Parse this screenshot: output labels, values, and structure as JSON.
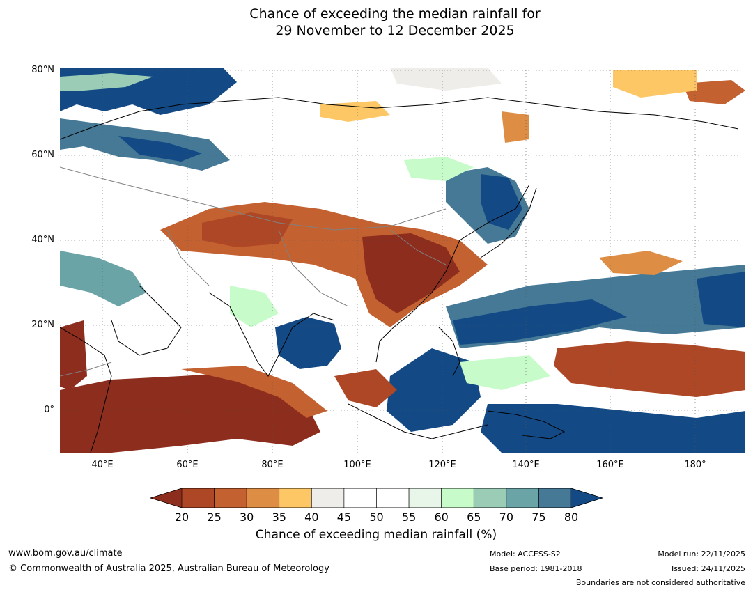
{
  "title": {
    "line1": "Chance of exceeding the median rainfall for",
    "line2": "29 November to 12 December 2025"
  },
  "map": {
    "lat_labels": [
      "80°N",
      "60°N",
      "40°N",
      "20°N",
      "0°"
    ],
    "lon_labels": [
      "40°E",
      "60°E",
      "80°E",
      "100°E",
      "120°E",
      "140°E",
      "160°E",
      "180°"
    ],
    "palette": {
      "20": "#8c2d1e",
      "25": "#ad4726",
      "30": "#c46131",
      "35": "#de8d45",
      "40": "#fdc765",
      "45": "#eeede9",
      "50": "#ffffff",
      "55": "#ffffff",
      "60": "#e8f6e9",
      "65": "#c7fcca",
      "70": "#9bcdb6",
      "75": "#6ba4a6",
      "80": "#457996",
      "over": "#134a85"
    }
  },
  "colorbar": {
    "ticks": [
      "20",
      "25",
      "30",
      "35",
      "40",
      "45",
      "50",
      "55",
      "60",
      "65",
      "70",
      "75",
      "80"
    ],
    "colors": [
      "#ad4726",
      "#c46131",
      "#de8d45",
      "#fdc765",
      "#eeede9",
      "#ffffff",
      "#ffffff",
      "#e8f6e9",
      "#c7fcca",
      "#9bcdb6",
      "#6ba4a6",
      "#457996"
    ],
    "under_color": "#8c2d1e",
    "over_color": "#134a85",
    "label": "Chance of exceeding median rainfall (%)"
  },
  "footer": {
    "website": "www.bom.gov.au/climate",
    "copyright": "© Commonwealth of Australia 2025, Australian Bureau of Meteorology",
    "model": "Model: ACCESS-S2",
    "base_period": "Base period: 1981-2018",
    "model_run": "Model run: 22/11/2025",
    "issued": "Issued: 24/11/2025",
    "disclaimer": "Boundaries are not considered authoritative"
  }
}
